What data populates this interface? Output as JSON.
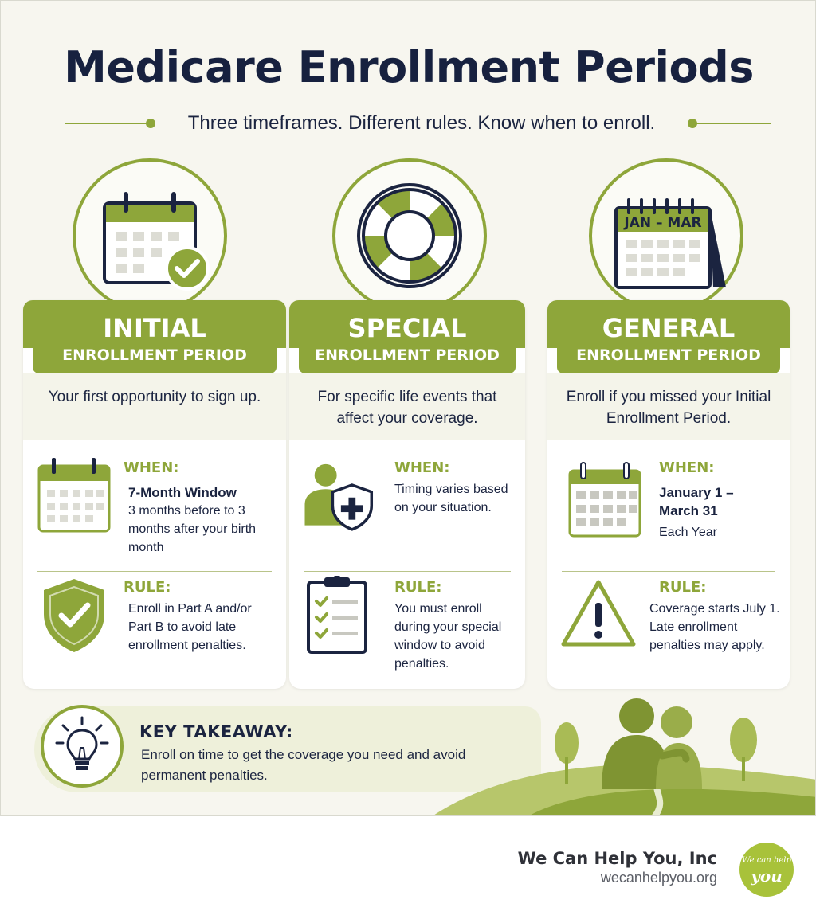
{
  "header": {
    "title": "Medicare Enrollment Periods",
    "subtitle": "Three timeframes. Different rules. Know when to enroll."
  },
  "columns": [
    {
      "title_big": "INITIAL",
      "title_small": "ENROLLMENT PERIOD",
      "description": "Your first opportunity to sign up.",
      "when_label": "WHEN:",
      "when_emphasis": "7-Month Window",
      "when_text": "3 months before to 3 months after your birth month",
      "rule_label": "RULE:",
      "rule_text": "Enroll in Part A and/or Part B to avoid late enrollment penalties.",
      "icon": "calendar-check-icon"
    },
    {
      "title_big": "SPECIAL",
      "title_small": "ENROLLMENT PERIOD",
      "description": "For specific life events that affect your coverage.",
      "when_label": "WHEN:",
      "when_text": "Timing varies based on your situation.",
      "rule_label": "RULE:",
      "rule_text": "You must enroll during your special window to avoid penalties.",
      "icon": "life-ring-icon"
    },
    {
      "title_big": "GENERAL",
      "title_small": "ENROLLMENT PERIOD",
      "description": "Enroll if you missed your Initial Enrollment Period.",
      "calendar_label": "JAN – MAR",
      "when_label": "WHEN:",
      "when_emphasis": "January 1 – March 31",
      "when_text": "Each Year",
      "rule_label": "RULE:",
      "rule_text": "Coverage starts July 1. Late enrollment penalties may apply.",
      "icon": "desk-calendar-icon"
    }
  ],
  "takeaway": {
    "title": "KEY TAKEAWAY:",
    "text": "Enroll on time to get the coverage you need and avoid permanent penalties."
  },
  "footer": {
    "company": "We Can Help You, Inc",
    "url": "wecanhelpyou.org",
    "logo_line1": "We can help",
    "logo_line2": "you"
  },
  "colors": {
    "accent_green": "#8ea63a",
    "navy": "#17213f",
    "background": "#f7f6ef"
  }
}
